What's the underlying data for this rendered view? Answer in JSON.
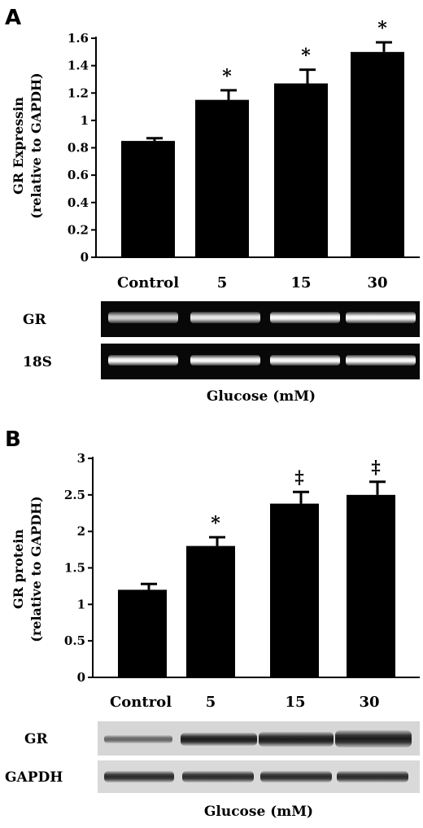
{
  "chart_data": [
    {
      "panel": "A",
      "type": "bar",
      "categories": [
        "Control",
        "5",
        "15",
        "30"
      ],
      "values": [
        0.85,
        1.15,
        1.27,
        1.5
      ],
      "errors": [
        0.02,
        0.07,
        0.1,
        0.07
      ],
      "significance": [
        "",
        "*",
        "*",
        "*"
      ],
      "ylabel_lines": [
        "GR Expressin",
        "(relative to GAPDH)"
      ],
      "ylim": [
        0,
        1.6
      ],
      "yticks": [
        "0",
        "0.2",
        "0.4",
        "0.6",
        "0.8",
        "1",
        "1.2",
        "1.4",
        "1.6"
      ],
      "xlabel": "Glucose (mM)",
      "blot_rows": [
        "GR",
        "18S"
      ],
      "blot_style": "gel",
      "bar_color": "#000000"
    },
    {
      "panel": "B",
      "type": "bar",
      "categories": [
        "Control",
        "5",
        "15",
        "30"
      ],
      "values": [
        1.2,
        1.8,
        2.38,
        2.5
      ],
      "errors": [
        0.08,
        0.12,
        0.16,
        0.18
      ],
      "significance": [
        "",
        "*",
        "‡",
        "‡"
      ],
      "ylabel_lines": [
        "GR protein",
        "(relative to GAPDH)"
      ],
      "ylim": [
        0,
        3
      ],
      "yticks": [
        "0",
        "0.5",
        "1",
        "1.5",
        "2",
        "2.5",
        "3"
      ],
      "xlabel": "Glucose (mM)",
      "blot_rows": [
        "GR",
        "GAPDH"
      ],
      "blot_style": "western",
      "bar_color": "#000000"
    }
  ]
}
